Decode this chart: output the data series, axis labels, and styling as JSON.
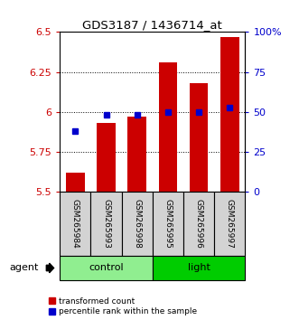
{
  "title": "GDS3187 / 1436714_at",
  "samples": [
    "GSM265984",
    "GSM265993",
    "GSM265998",
    "GSM265995",
    "GSM265996",
    "GSM265997"
  ],
  "transformed_counts": [
    5.62,
    5.93,
    5.97,
    6.31,
    6.18,
    6.47
  ],
  "percentile_ranks": [
    38,
    48,
    48,
    50,
    50,
    53
  ],
  "bar_bottom": 5.5,
  "ylim": [
    5.5,
    6.5
  ],
  "yticks": [
    5.5,
    5.75,
    6.0,
    6.25,
    6.5
  ],
  "ytick_labels": [
    "5.5",
    "5.75",
    "6",
    "6.25",
    "6.5"
  ],
  "right_yticks": [
    0,
    25,
    50,
    75,
    100
  ],
  "right_ytick_labels": [
    "0",
    "25",
    "50",
    "75",
    "100%"
  ],
  "red_color": "#CC0000",
  "blue_color": "#0000CC",
  "left_tick_color": "#CC0000",
  "right_tick_color": "#0000CC",
  "agent_label": "agent",
  "bar_width": 0.6,
  "percentile_marker_size": 5,
  "grid_yticks": [
    5.75,
    6.0,
    6.25
  ],
  "group_info": [
    {
      "name": "control",
      "start": 0,
      "end": 3,
      "color": "#90EE90"
    },
    {
      "name": "light",
      "start": 3,
      "end": 6,
      "color": "#00CC00"
    }
  ],
  "sample_box_color": "#d3d3d3",
  "figsize": [
    3.31,
    3.54
  ],
  "dpi": 100
}
